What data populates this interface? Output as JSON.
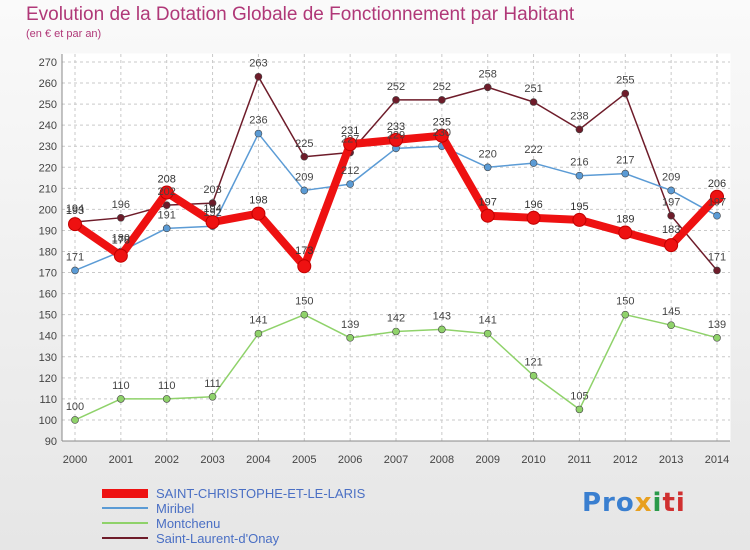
{
  "chart_data": {
    "type": "line",
    "title": "Evolution de la Dotation Globale de Fonctionnement par Habitant",
    "subtitle": "(en € et par an)",
    "xlabel": "",
    "ylabel": "",
    "ylim": [
      90,
      270
    ],
    "y_ticks": [
      90,
      100,
      110,
      120,
      130,
      140,
      150,
      160,
      170,
      180,
      190,
      200,
      210,
      220,
      230,
      240,
      250,
      260,
      270
    ],
    "grid": true,
    "legend_position": "bottom-left",
    "categories": [
      "2000",
      "2001",
      "2002",
      "2003",
      "2004",
      "2005",
      "2006",
      "2007",
      "2008",
      "2009",
      "2010",
      "2011",
      "2012",
      "2013",
      "2014"
    ],
    "series": [
      {
        "name": "Saint-Laurent-d'Onay",
        "color": "#6e1c2a",
        "values": [
          194,
          196,
          202,
          203,
          263,
          225,
          227,
          252,
          252,
          258,
          251,
          238,
          255,
          197,
          171
        ]
      },
      {
        "name": "Montchenu",
        "color": "#8fd26a",
        "values": [
          100,
          110,
          110,
          111,
          141,
          150,
          139,
          142,
          143,
          141,
          121,
          105,
          150,
          145,
          139
        ]
      },
      {
        "name": "Miribel",
        "color": "#5b9bd5",
        "values": [
          171,
          180,
          191,
          192,
          236,
          209,
          212,
          229,
          230,
          220,
          222,
          216,
          217,
          209,
          197
        ]
      },
      {
        "name": "SAINT-CHRISTOPHE-ET-LE-LARIS",
        "color": "#ee1111",
        "values": [
          193,
          178,
          208,
          194,
          198,
          173,
          231,
          233,
          235,
          197,
          196,
          195,
          189,
          183,
          206
        ]
      }
    ],
    "legend_order": [
      3,
      2,
      1,
      0
    ]
  },
  "logo": {
    "p1": "Pro",
    "p2": "x",
    "p3": "i",
    "p4": "ti"
  }
}
